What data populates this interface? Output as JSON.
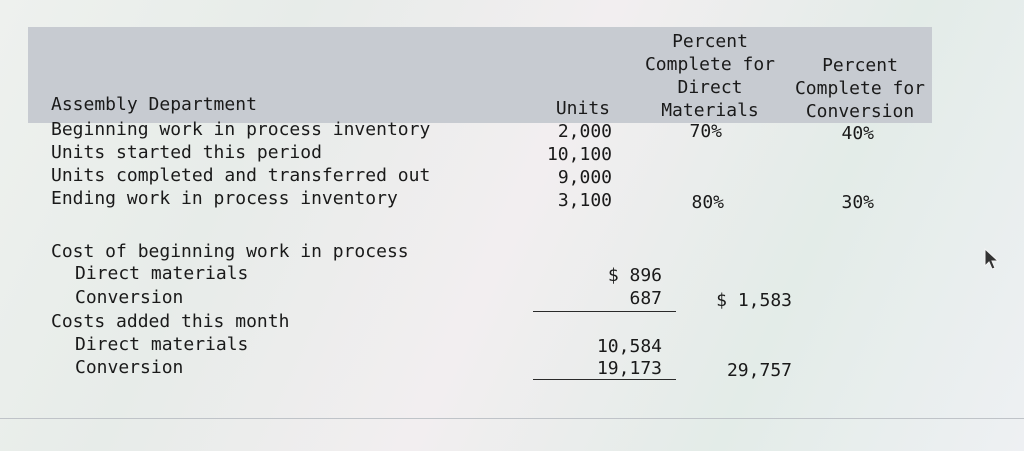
{
  "header": {
    "department": "Assembly Department",
    "col_units": "Units",
    "col_dm": [
      "Percent",
      "Complete for",
      "Direct",
      "Materials"
    ],
    "col_conv": [
      "Percent",
      "Complete for",
      "Conversion"
    ]
  },
  "unit_rows": [
    {
      "label": "Beginning work in process inventory",
      "units": "2,000",
      "dm": "70%",
      "conv": "40%"
    },
    {
      "label": "Units started this period",
      "units": "10,100",
      "dm": "",
      "conv": ""
    },
    {
      "label": "Units completed and transferred out",
      "units": "9,000",
      "dm": "",
      "conv": ""
    },
    {
      "label": "Ending work in process inventory",
      "units": "3,100",
      "dm": "80%",
      "conv": "30%"
    }
  ],
  "costs": {
    "beginning_label": "Cost of beginning work in process",
    "beginning": [
      {
        "label": "Direct materials",
        "amount": "$ 896"
      },
      {
        "label": "Conversion",
        "amount": "687"
      }
    ],
    "beginning_total": "$ 1,583",
    "added_label": "Costs added this month",
    "added": [
      {
        "label": "Direct materials",
        "amount": "10,584"
      },
      {
        "label": "Conversion",
        "amount": "19,173"
      }
    ],
    "added_total": "29,757"
  }
}
